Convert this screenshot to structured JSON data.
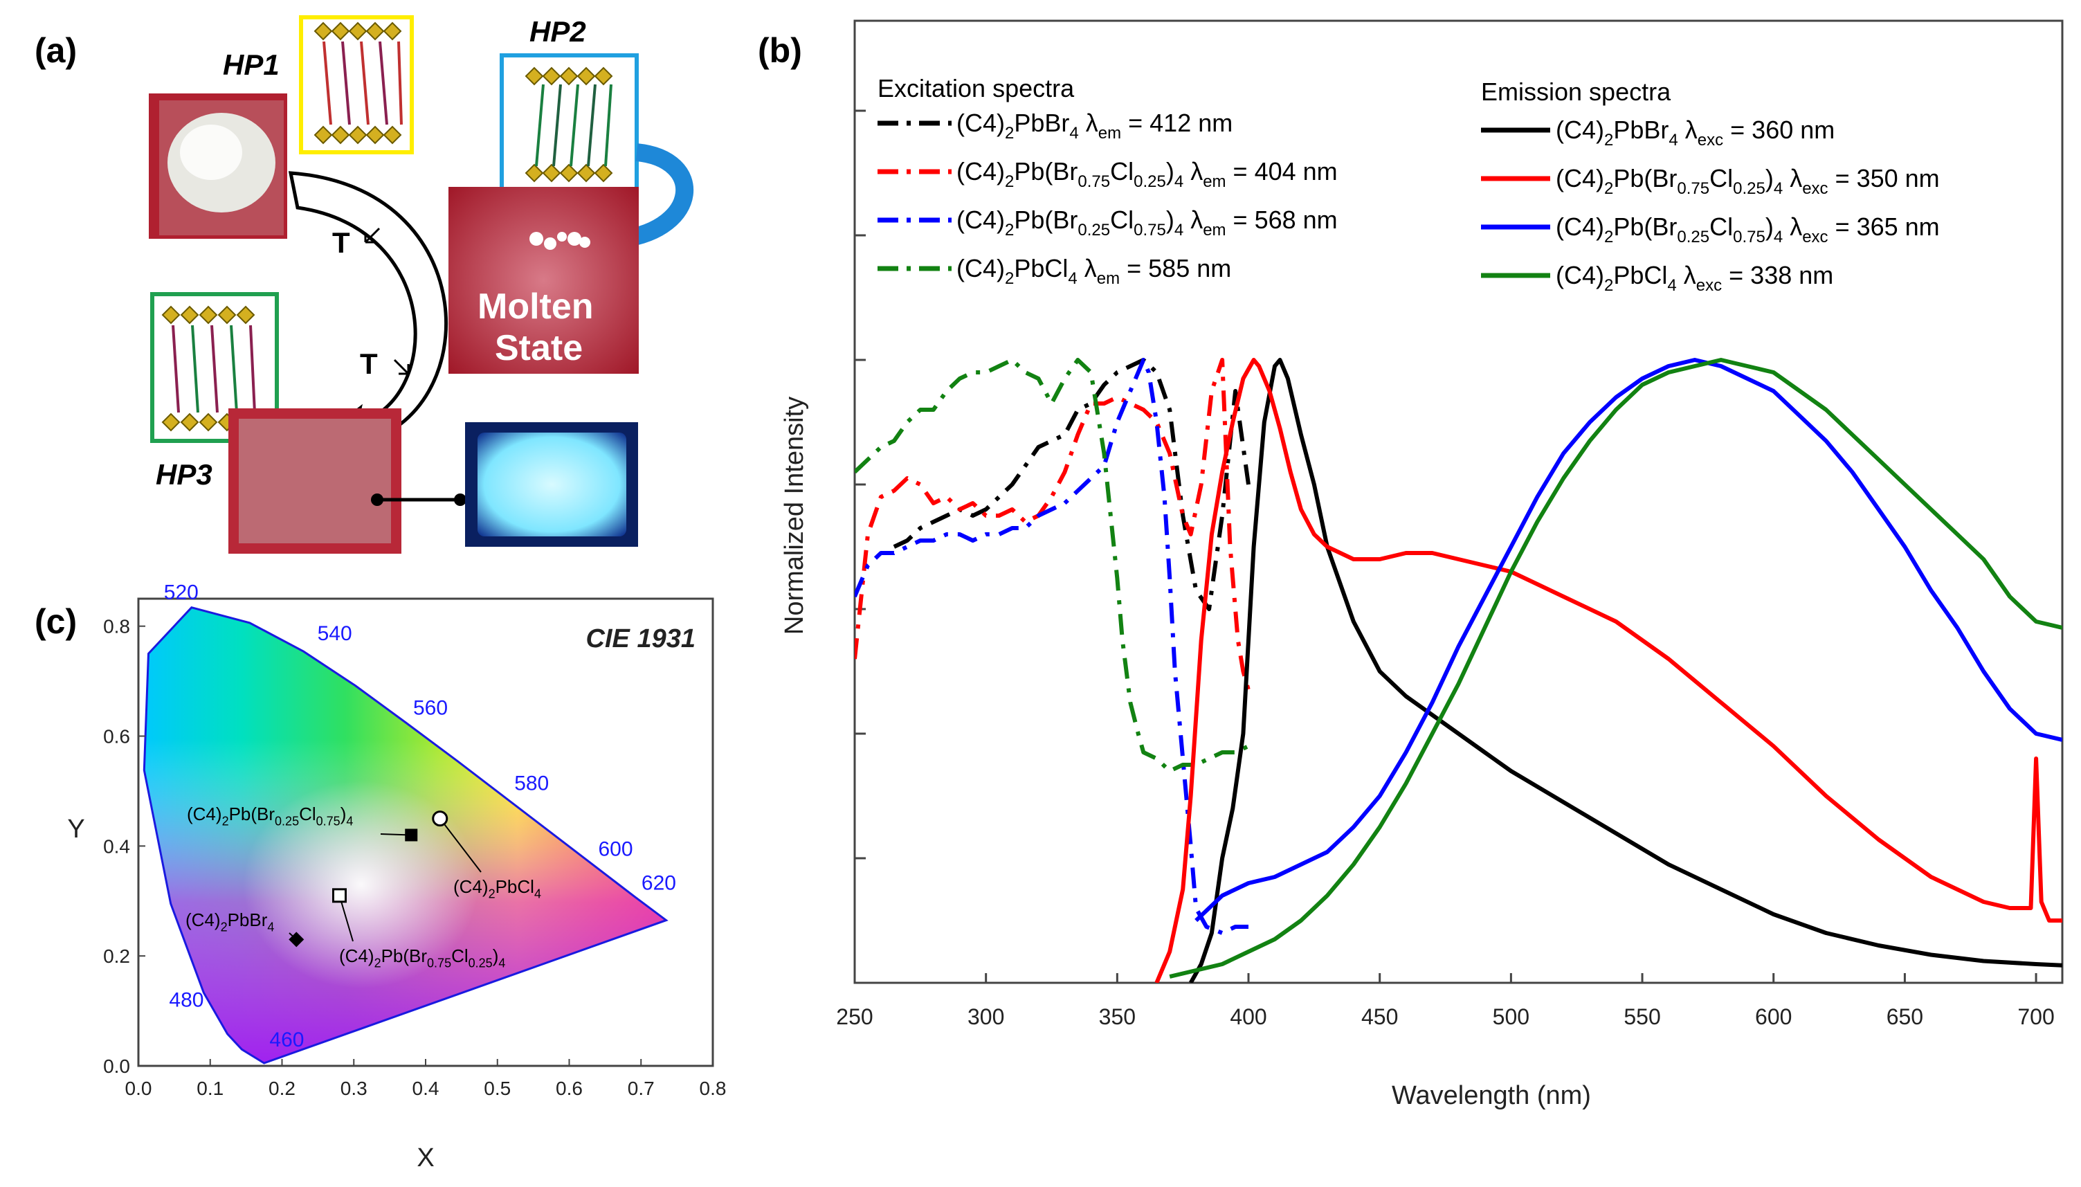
{
  "panels": {
    "a": {
      "label": "(a)",
      "hp1": "HP1",
      "hp2": "HP2",
      "hp3": "HP3",
      "molten": "Molten",
      "state": "State",
      "t1": "T",
      "t2": "T"
    },
    "b": {
      "label": "(b)"
    },
    "c": {
      "label": "(c)"
    }
  },
  "legend": {
    "excitation_title": "Excitation spectra",
    "emission_title": "Emission spectra"
  },
  "chart_data": [
    {
      "type": "line",
      "panel": "(b)",
      "xlabel": "Wavelength (nm)",
      "ylabel": "Normalized Intensity",
      "xlim": [
        250,
        710
      ],
      "ylim": [
        0,
        1.0
      ],
      "xticks": [
        "250",
        "300",
        "350",
        "400",
        "450",
        "500",
        "550",
        "600",
        "650",
        "700"
      ],
      "series": [
        {
          "name": "(C4)2PbBr4 λem = 412 nm",
          "group": "excitation",
          "color": "#000000",
          "style": "dashdot",
          "x": [
            265,
            270,
            275,
            280,
            285,
            290,
            295,
            300,
            305,
            310,
            315,
            320,
            325,
            330,
            335,
            340,
            345,
            350,
            355,
            360,
            365,
            370,
            375,
            380,
            385,
            390,
            395,
            400
          ],
          "y": [
            0.7,
            0.71,
            0.73,
            0.74,
            0.75,
            0.76,
            0.75,
            0.76,
            0.78,
            0.8,
            0.83,
            0.86,
            0.87,
            0.88,
            0.92,
            0.93,
            0.96,
            0.98,
            0.99,
            1.0,
            0.98,
            0.92,
            0.75,
            0.63,
            0.6,
            0.75,
            0.95,
            0.8
          ]
        },
        {
          "name": "(C4)2Pb(Br0.75Cl0.25)4 λem = 404 nm",
          "group": "excitation",
          "color": "#ff0000",
          "style": "dashdot",
          "x": [
            250,
            255,
            260,
            265,
            270,
            275,
            280,
            285,
            290,
            295,
            300,
            305,
            310,
            315,
            320,
            325,
            330,
            335,
            340,
            345,
            350,
            355,
            360,
            365,
            370,
            375,
            378,
            382,
            386,
            390,
            393,
            396,
            398,
            400
          ],
          "y": [
            0.52,
            0.72,
            0.78,
            0.79,
            0.81,
            0.8,
            0.77,
            0.78,
            0.76,
            0.77,
            0.75,
            0.75,
            0.76,
            0.74,
            0.75,
            0.78,
            0.82,
            0.88,
            0.93,
            0.93,
            0.94,
            0.93,
            0.92,
            0.9,
            0.85,
            0.75,
            0.72,
            0.8,
            0.95,
            1.0,
            0.7,
            0.55,
            0.5,
            0.47
          ]
        },
        {
          "name": "(C4)2Pb(Br0.25Cl0.75)4 λem = 568 nm",
          "group": "excitation",
          "color": "#0000ff",
          "style": "dashdot",
          "x": [
            250,
            255,
            260,
            265,
            270,
            275,
            280,
            285,
            290,
            295,
            300,
            305,
            310,
            315,
            320,
            325,
            330,
            335,
            340,
            345,
            350,
            355,
            360,
            362,
            365,
            368,
            370,
            372,
            375,
            378,
            380,
            384,
            390,
            395,
            400
          ],
          "y": [
            0.62,
            0.67,
            0.69,
            0.69,
            0.7,
            0.71,
            0.71,
            0.72,
            0.72,
            0.71,
            0.72,
            0.72,
            0.73,
            0.73,
            0.75,
            0.76,
            0.77,
            0.79,
            0.81,
            0.83,
            0.9,
            0.95,
            1.0,
            0.98,
            0.9,
            0.78,
            0.65,
            0.5,
            0.36,
            0.22,
            0.12,
            0.09,
            0.08,
            0.09,
            0.09
          ]
        },
        {
          "name": "(C4)2PbCl4 λem = 585 nm",
          "group": "excitation",
          "color": "#128212",
          "style": "dashdot",
          "x": [
            250,
            255,
            260,
            265,
            270,
            275,
            280,
            285,
            290,
            295,
            300,
            305,
            310,
            315,
            320,
            325,
            330,
            335,
            340,
            345,
            350,
            352,
            355,
            358,
            360,
            365,
            370,
            375,
            380,
            385,
            390,
            395,
            400
          ],
          "y": [
            0.82,
            0.84,
            0.86,
            0.87,
            0.9,
            0.92,
            0.92,
            0.95,
            0.97,
            0.98,
            0.98,
            0.99,
            1.0,
            0.98,
            0.97,
            0.93,
            0.97,
            1.0,
            0.98,
            0.85,
            0.65,
            0.55,
            0.45,
            0.4,
            0.37,
            0.36,
            0.34,
            0.35,
            0.35,
            0.36,
            0.37,
            0.37,
            0.38
          ]
        },
        {
          "name": "(C4)2PbBr4 λexc = 360 nm",
          "group": "emission",
          "color": "#000000",
          "style": "solid",
          "x": [
            378,
            382,
            386,
            390,
            394,
            398,
            402,
            406,
            410,
            412,
            415,
            420,
            425,
            430,
            440,
            450,
            460,
            470,
            480,
            490,
            500,
            520,
            540,
            560,
            580,
            600,
            620,
            640,
            660,
            680,
            700,
            710
          ],
          "y": [
            0.0,
            0.03,
            0.08,
            0.2,
            0.28,
            0.4,
            0.7,
            0.9,
            0.99,
            1.0,
            0.97,
            0.88,
            0.8,
            0.7,
            0.58,
            0.5,
            0.46,
            0.43,
            0.4,
            0.37,
            0.34,
            0.29,
            0.24,
            0.19,
            0.15,
            0.11,
            0.08,
            0.06,
            0.045,
            0.035,
            0.03,
            0.028
          ]
        },
        {
          "name": "(C4)2Pb(Br0.75Cl0.25)4 λexc = 350 nm",
          "group": "emission",
          "color": "#ff0000",
          "style": "solid",
          "x": [
            365,
            370,
            375,
            378,
            382,
            386,
            390,
            394,
            398,
            402,
            404,
            408,
            412,
            416,
            420,
            425,
            430,
            440,
            450,
            460,
            470,
            480,
            490,
            500,
            510,
            520,
            540,
            560,
            580,
            600,
            620,
            640,
            660,
            680,
            690,
            698,
            700,
            702,
            705,
            710
          ],
          "y": [
            0.0,
            0.05,
            0.15,
            0.3,
            0.55,
            0.72,
            0.82,
            0.9,
            0.97,
            1.0,
            0.99,
            0.95,
            0.89,
            0.82,
            0.76,
            0.72,
            0.7,
            0.68,
            0.68,
            0.69,
            0.69,
            0.68,
            0.67,
            0.66,
            0.64,
            0.62,
            0.58,
            0.52,
            0.45,
            0.38,
            0.3,
            0.23,
            0.17,
            0.13,
            0.12,
            0.12,
            0.36,
            0.13,
            0.1,
            0.1
          ]
        },
        {
          "name": "(C4)2Pb(Br0.25Cl0.75)4 λexc = 365 nm",
          "group": "emission",
          "color": "#0000ff",
          "style": "solid",
          "x": [
            380,
            390,
            400,
            410,
            420,
            430,
            440,
            450,
            460,
            470,
            480,
            490,
            500,
            510,
            520,
            530,
            540,
            550,
            560,
            570,
            580,
            590,
            600,
            610,
            620,
            630,
            640,
            650,
            660,
            670,
            680,
            690,
            700,
            710
          ],
          "y": [
            0.1,
            0.14,
            0.16,
            0.17,
            0.19,
            0.21,
            0.25,
            0.3,
            0.37,
            0.45,
            0.54,
            0.62,
            0.7,
            0.78,
            0.85,
            0.9,
            0.94,
            0.97,
            0.99,
            1.0,
            0.99,
            0.97,
            0.95,
            0.91,
            0.87,
            0.82,
            0.76,
            0.7,
            0.63,
            0.57,
            0.5,
            0.44,
            0.4,
            0.39
          ]
        },
        {
          "name": "(C4)2PbCl4 λexc = 338 nm",
          "group": "emission",
          "color": "#128212",
          "style": "solid",
          "x": [
            370,
            380,
            390,
            400,
            410,
            420,
            430,
            440,
            450,
            460,
            470,
            480,
            490,
            500,
            510,
            520,
            530,
            540,
            550,
            560,
            570,
            580,
            590,
            600,
            610,
            620,
            630,
            640,
            650,
            660,
            670,
            680,
            690,
            700,
            710
          ],
          "y": [
            0.01,
            0.02,
            0.03,
            0.05,
            0.07,
            0.1,
            0.14,
            0.19,
            0.25,
            0.32,
            0.4,
            0.48,
            0.57,
            0.66,
            0.74,
            0.81,
            0.87,
            0.92,
            0.96,
            0.98,
            0.99,
            1.0,
            0.99,
            0.98,
            0.95,
            0.92,
            0.88,
            0.84,
            0.8,
            0.76,
            0.72,
            0.68,
            0.62,
            0.58,
            0.57
          ]
        }
      ]
    },
    {
      "type": "scatter",
      "panel": "(c)",
      "title": "CIE 1931",
      "xlabel": "X",
      "ylabel": "Y",
      "xlim": [
        0.0,
        0.8
      ],
      "ylim": [
        0.0,
        0.85
      ],
      "xticks": [
        "0.0",
        "0.1",
        "0.2",
        "0.3",
        "0.4",
        "0.5",
        "0.6",
        "0.7",
        "0.8"
      ],
      "yticks": [
        "0.0",
        "0.2",
        "0.4",
        "0.6",
        "0.8"
      ],
      "wavelength_labels": [
        {
          "label": "460",
          "x": 0.144,
          "y": 0.03
        },
        {
          "label": "480",
          "x": 0.091,
          "y": 0.133
        },
        {
          "label": "520",
          "x": 0.074,
          "y": 0.834
        },
        {
          "label": "540",
          "x": 0.23,
          "y": 0.754
        },
        {
          "label": "560",
          "x": 0.373,
          "y": 0.624
        },
        {
          "label": "580",
          "x": 0.512,
          "y": 0.487
        },
        {
          "label": "600",
          "x": 0.627,
          "y": 0.372
        },
        {
          "label": "620",
          "x": 0.691,
          "y": 0.308
        }
      ],
      "points": [
        {
          "name": "(C4)2PbBr4",
          "x": 0.22,
          "y": 0.23,
          "marker": "filled-diamond"
        },
        {
          "name": "(C4)2Pb(Br0.75Cl0.25)4",
          "x": 0.28,
          "y": 0.31,
          "marker": "open-square"
        },
        {
          "name": "(C4)2Pb(Br0.25Cl0.75)4",
          "x": 0.38,
          "y": 0.42,
          "marker": "filled-square"
        },
        {
          "name": "(C4)2PbCl4",
          "x": 0.42,
          "y": 0.45,
          "marker": "open-circle"
        }
      ]
    }
  ]
}
